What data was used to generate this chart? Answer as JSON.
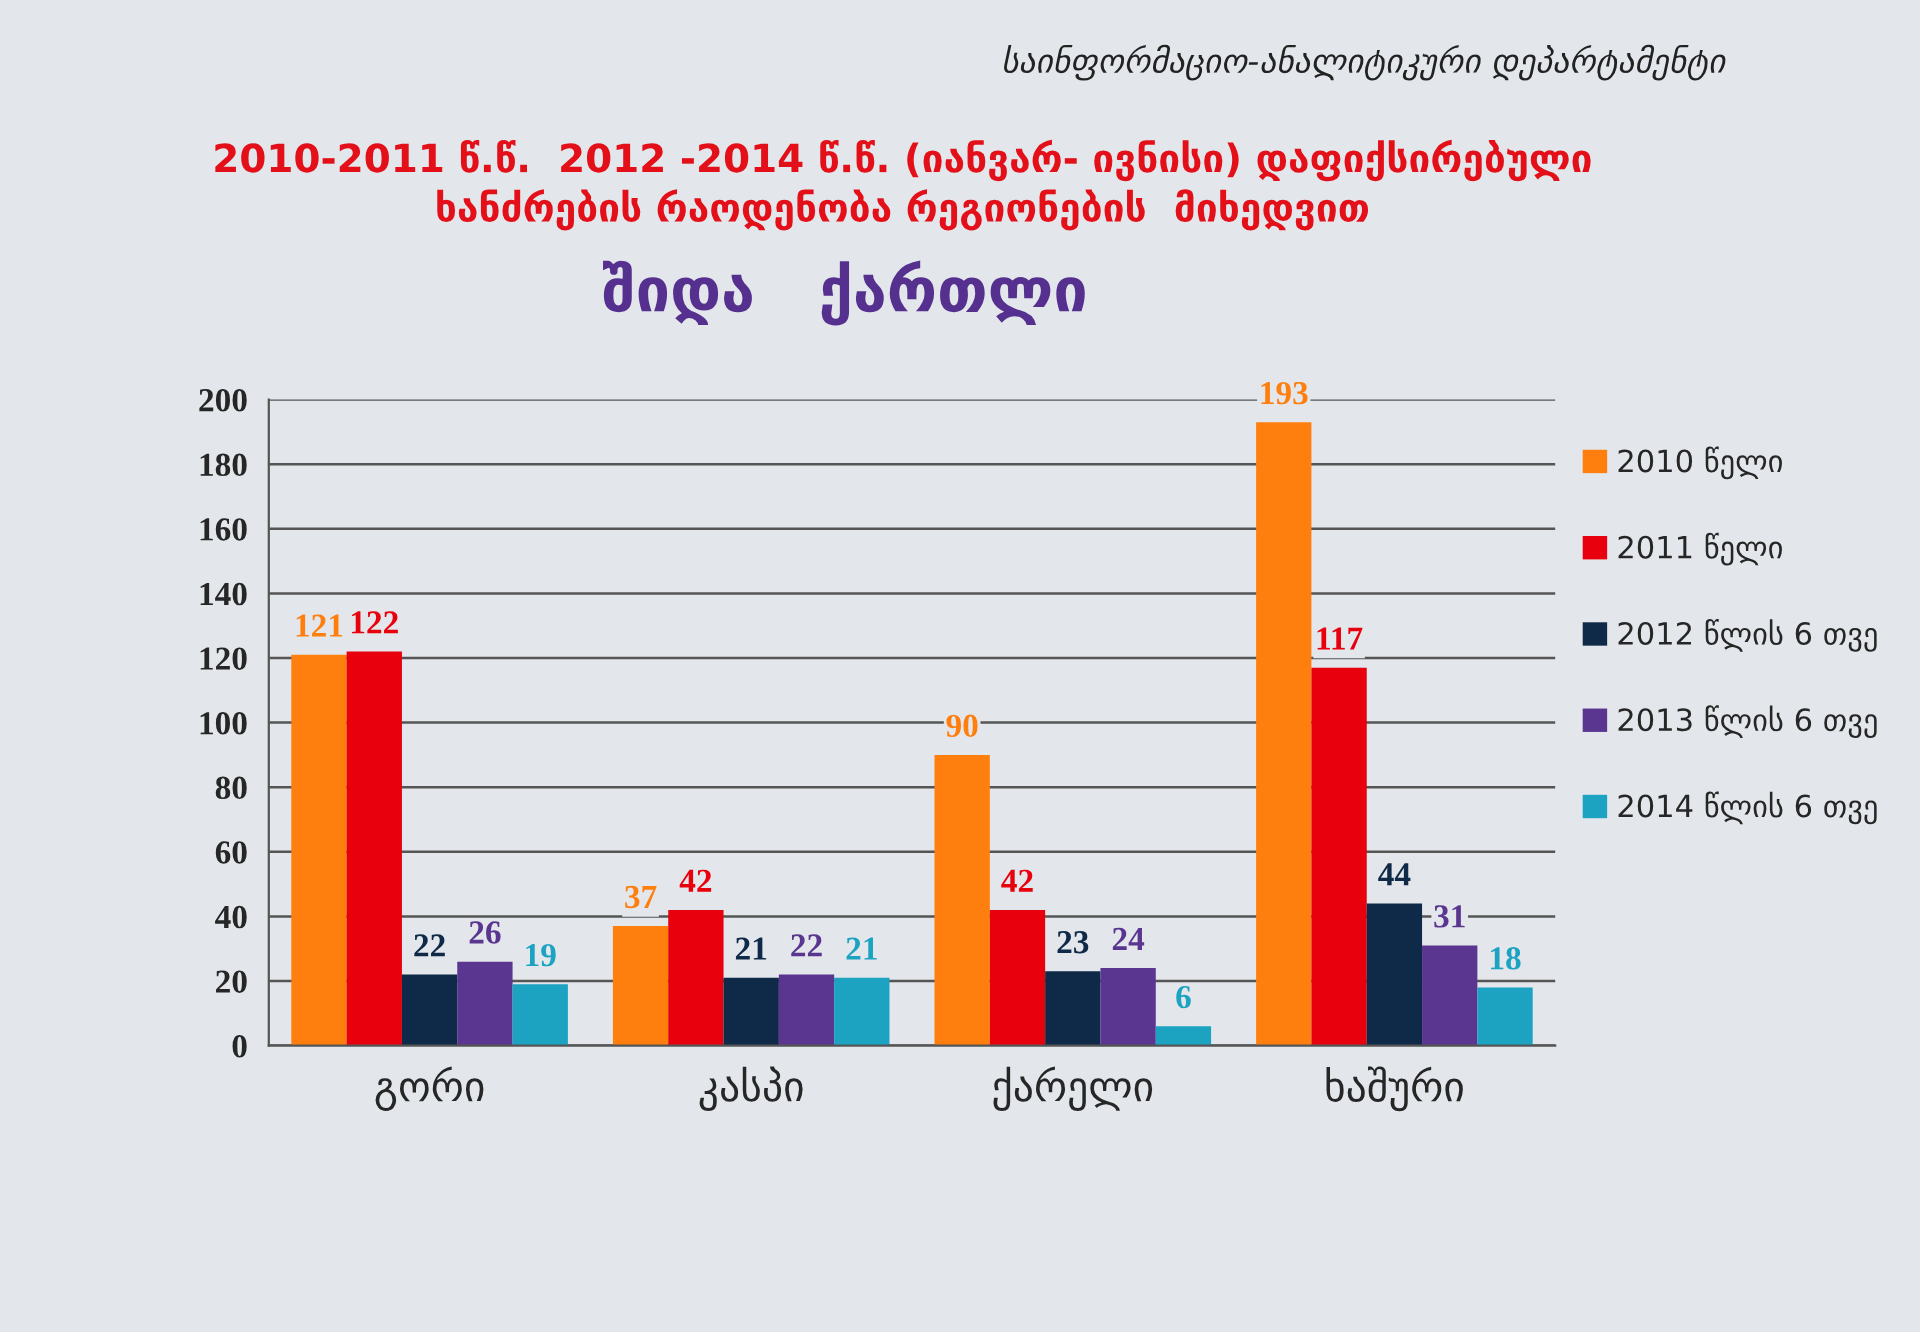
{
  "chart_data": {
    "type": "bar",
    "title": "2010-2011 წ.წ.  2012 -2014 წ.წ. (იანვარ- ივნისი) დაფიქსირებული\nხანძრების რაოდენობა რეგიონების  მიხედვით",
    "subtitle": "შიდა   ქართლი",
    "annotations": [
      "საინფორმაციო-ანალიტიკური დეპარტამენტი"
    ],
    "categories": [
      "გორი",
      "კასპი",
      "ქარელი",
      "ხაშური"
    ],
    "series": [
      {
        "name": "2010 წელი",
        "color": "#ff7f0e",
        "values": [
          121,
          37,
          90,
          193
        ]
      },
      {
        "name": "2011 წელი",
        "color": "#e8000d",
        "values": [
          122,
          42,
          42,
          117
        ]
      },
      {
        "name": "2012 წლის 6 თვე",
        "color": "#0f2a48",
        "values": [
          22,
          21,
          23,
          44
        ]
      },
      {
        "name": "2013 წლის 6 თვე",
        "color": "#5a3690",
        "values": [
          26,
          22,
          24,
          31
        ]
      },
      {
        "name": "2014 წლის 6 თვე",
        "color": "#1ca3c2",
        "values": [
          19,
          21,
          6,
          18
        ]
      }
    ],
    "ylim": [
      0,
      200
    ],
    "yticks": [
      0,
      20,
      40,
      60,
      80,
      100,
      120,
      140,
      160,
      180,
      200
    ],
    "grid": "y",
    "legend": "right",
    "data_labels": true
  }
}
